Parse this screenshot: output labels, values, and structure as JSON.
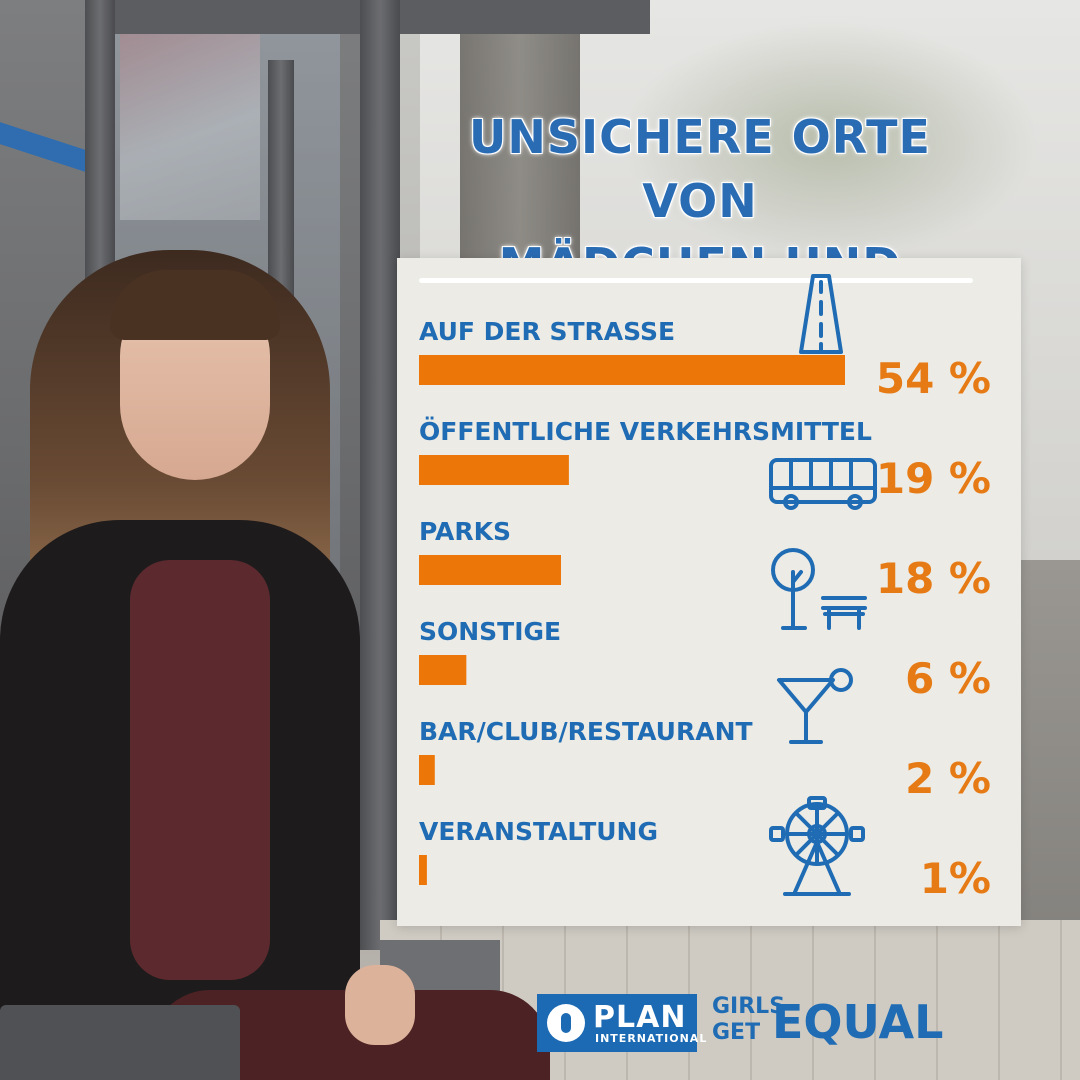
{
  "headline": {
    "line1": "UNSICHERE ORTE VON",
    "line2": "MÄDCHEN UND FRAUEN"
  },
  "colors": {
    "headline": "#2a6cb4",
    "category_label": "#1f6cb4",
    "bar": "#ec7608",
    "percent": "#e67a14",
    "panel": "#ecebe5",
    "brand_blue": "#1b6ab3"
  },
  "chart_data": {
    "type": "bar",
    "orientation": "horizontal",
    "categories": [
      "AUF DER STRASSE",
      "ÖFFENTLICHE VERKEHRSMITTEL",
      "PARKS",
      "SONSTIGE",
      "BAR/CLUB/RESTAURANT",
      "VERANSTALTUNG"
    ],
    "values": [
      54,
      19,
      18,
      6,
      2,
      1
    ],
    "value_labels": [
      "54 %",
      "19 %",
      "18 %",
      "6 %",
      "2 %",
      "1%"
    ],
    "icons": [
      "road-icon",
      "bus-icon",
      "park-tree-bench-icon",
      "",
      "cocktail-icon",
      "ferris-wheel-icon"
    ],
    "xlim": [
      0,
      54
    ],
    "grid": false,
    "legend": "none"
  },
  "logos": {
    "plan": "PLAN",
    "plan_sub": "INTERNATIONAL",
    "girls": "GIRLS",
    "get": "GET",
    "equal": "EQUAL"
  }
}
